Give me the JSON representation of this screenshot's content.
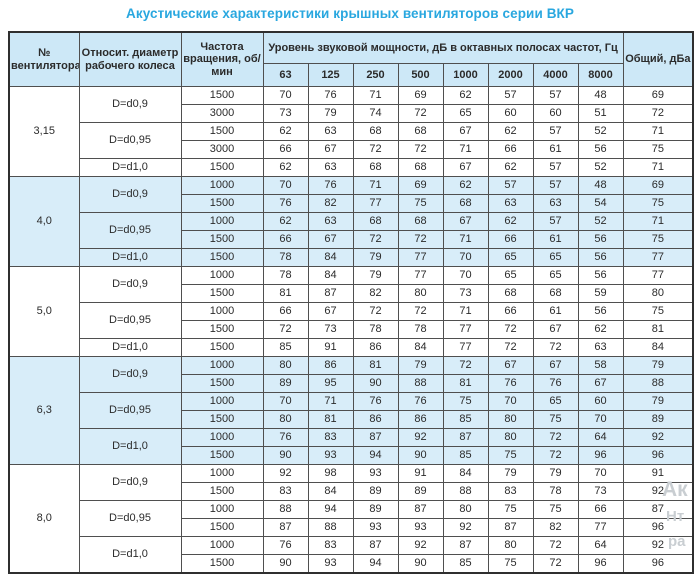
{
  "title": "Акустические характеристики крышных вентиляторов серии ВКР",
  "colors": {
    "accent": "#29a7df",
    "header_bg": "#cde8f7",
    "shaded_bg": "#d8edf9",
    "border": "#4f4f4f"
  },
  "watermark": {
    "lines": [
      "Ак",
      "Нт",
      "ра"
    ]
  },
  "table": {
    "header": {
      "col_fan": "№ вентилятора",
      "col_diameter": "Относит. диаметр рабочего колеса",
      "col_speed": "Частота вращения, об/мин",
      "col_levels": "Уровень звуковой мощности, дБ в октавных полосах частот, Гц",
      "freqs": [
        "63",
        "125",
        "250",
        "500",
        "1000",
        "2000",
        "4000",
        "8000"
      ],
      "col_total": "Общий, дБа"
    },
    "groups": [
      {
        "fan": "3,15",
        "shaded": false,
        "subgroups": [
          {
            "diameter": "D=d0,9",
            "rows": [
              {
                "speed": "1500",
                "levels": [
                  70,
                  76,
                  71,
                  69,
                  62,
                  57,
                  57,
                  48
                ],
                "total": 69
              },
              {
                "speed": "3000",
                "levels": [
                  73,
                  79,
                  74,
                  72,
                  65,
                  60,
                  60,
                  51
                ],
                "total": 72
              }
            ]
          },
          {
            "diameter": "D=d0,95",
            "rows": [
              {
                "speed": "1500",
                "levels": [
                  62,
                  63,
                  68,
                  68,
                  67,
                  62,
                  57,
                  52
                ],
                "total": 71
              },
              {
                "speed": "3000",
                "levels": [
                  66,
                  67,
                  72,
                  72,
                  71,
                  66,
                  61,
                  56
                ],
                "total": 75
              }
            ]
          },
          {
            "diameter": "D=d1,0",
            "rows": [
              {
                "speed": "1500",
                "levels": [
                  62,
                  63,
                  68,
                  68,
                  67,
                  62,
                  57,
                  52
                ],
                "total": 71
              }
            ]
          }
        ]
      },
      {
        "fan": "4,0",
        "shaded": true,
        "subgroups": [
          {
            "diameter": "D=d0,9",
            "rows": [
              {
                "speed": "1000",
                "levels": [
                  70,
                  76,
                  71,
                  69,
                  62,
                  57,
                  57,
                  48
                ],
                "total": 69
              },
              {
                "speed": "1500",
                "levels": [
                  76,
                  82,
                  77,
                  75,
                  68,
                  63,
                  63,
                  54
                ],
                "total": 75
              }
            ]
          },
          {
            "diameter": "D=d0,95",
            "rows": [
              {
                "speed": "1000",
                "levels": [
                  62,
                  63,
                  68,
                  68,
                  67,
                  62,
                  57,
                  52
                ],
                "total": 71
              },
              {
                "speed": "1500",
                "levels": [
                  66,
                  67,
                  72,
                  72,
                  71,
                  66,
                  61,
                  56
                ],
                "total": 75
              }
            ]
          },
          {
            "diameter": "D=d1,0",
            "rows": [
              {
                "speed": "1500",
                "levels": [
                  78,
                  84,
                  79,
                  77,
                  70,
                  65,
                  65,
                  56
                ],
                "total": 77
              }
            ]
          }
        ]
      },
      {
        "fan": "5,0",
        "shaded": false,
        "subgroups": [
          {
            "diameter": "D=d0,9",
            "rows": [
              {
                "speed": "1000",
                "levels": [
                  78,
                  84,
                  79,
                  77,
                  70,
                  65,
                  65,
                  56
                ],
                "total": 77
              },
              {
                "speed": "1500",
                "levels": [
                  81,
                  87,
                  82,
                  80,
                  73,
                  68,
                  68,
                  59
                ],
                "total": 80
              }
            ]
          },
          {
            "diameter": "D=d0,95",
            "rows": [
              {
                "speed": "1000",
                "levels": [
                  66,
                  67,
                  72,
                  72,
                  71,
                  66,
                  61,
                  56
                ],
                "total": 75
              },
              {
                "speed": "1500",
                "levels": [
                  72,
                  73,
                  78,
                  78,
                  77,
                  72,
                  67,
                  62
                ],
                "total": 81
              }
            ]
          },
          {
            "diameter": "D=d1,0",
            "rows": [
              {
                "speed": "1500",
                "levels": [
                  85,
                  91,
                  86,
                  84,
                  77,
                  72,
                  72,
                  63
                ],
                "total": 84
              }
            ]
          }
        ]
      },
      {
        "fan": "6,3",
        "shaded": true,
        "subgroups": [
          {
            "diameter": "D=d0,9",
            "rows": [
              {
                "speed": "1000",
                "levels": [
                  80,
                  86,
                  81,
                  79,
                  72,
                  67,
                  67,
                  58
                ],
                "total": 79
              },
              {
                "speed": "1500",
                "levels": [
                  89,
                  95,
                  90,
                  88,
                  81,
                  76,
                  76,
                  67
                ],
                "total": 88
              }
            ]
          },
          {
            "diameter": "D=d0,95",
            "rows": [
              {
                "speed": "1000",
                "levels": [
                  70,
                  71,
                  76,
                  76,
                  75,
                  70,
                  65,
                  60
                ],
                "total": 79
              },
              {
                "speed": "1500",
                "levels": [
                  80,
                  81,
                  86,
                  86,
                  85,
                  80,
                  75,
                  70
                ],
                "total": 89
              }
            ]
          },
          {
            "diameter": "D=d1,0",
            "rows": [
              {
                "speed": "1000",
                "levels": [
                  76,
                  83,
                  87,
                  92,
                  87,
                  80,
                  72,
                  64
                ],
                "total": 92
              },
              {
                "speed": "1500",
                "levels": [
                  90,
                  93,
                  94,
                  90,
                  85,
                  75,
                  72,
                  96
                ],
                "total": 96
              }
            ]
          }
        ]
      },
      {
        "fan": "8,0",
        "shaded": false,
        "subgroups": [
          {
            "diameter": "D=d0,9",
            "rows": [
              {
                "speed": "1000",
                "levels": [
                  92,
                  98,
                  93,
                  91,
                  84,
                  79,
                  79,
                  70
                ],
                "total": 91
              },
              {
                "speed": "1500",
                "levels": [
                  83,
                  84,
                  89,
                  89,
                  88,
                  83,
                  78,
                  73
                ],
                "total": 92
              }
            ]
          },
          {
            "diameter": "D=d0,95",
            "rows": [
              {
                "speed": "1000",
                "levels": [
                  88,
                  94,
                  89,
                  87,
                  80,
                  75,
                  75,
                  66
                ],
                "total": 87
              },
              {
                "speed": "1500",
                "levels": [
                  87,
                  88,
                  93,
                  93,
                  92,
                  87,
                  82,
                  77
                ],
                "total": 96
              }
            ]
          },
          {
            "diameter": "D=d1,0",
            "rows": [
              {
                "speed": "1000",
                "levels": [
                  76,
                  83,
                  87,
                  92,
                  87,
                  80,
                  72,
                  64
                ],
                "total": 92
              },
              {
                "speed": "1500",
                "levels": [
                  90,
                  93,
                  94,
                  90,
                  85,
                  75,
                  72,
                  96
                ],
                "total": 96
              }
            ]
          }
        ]
      }
    ]
  }
}
